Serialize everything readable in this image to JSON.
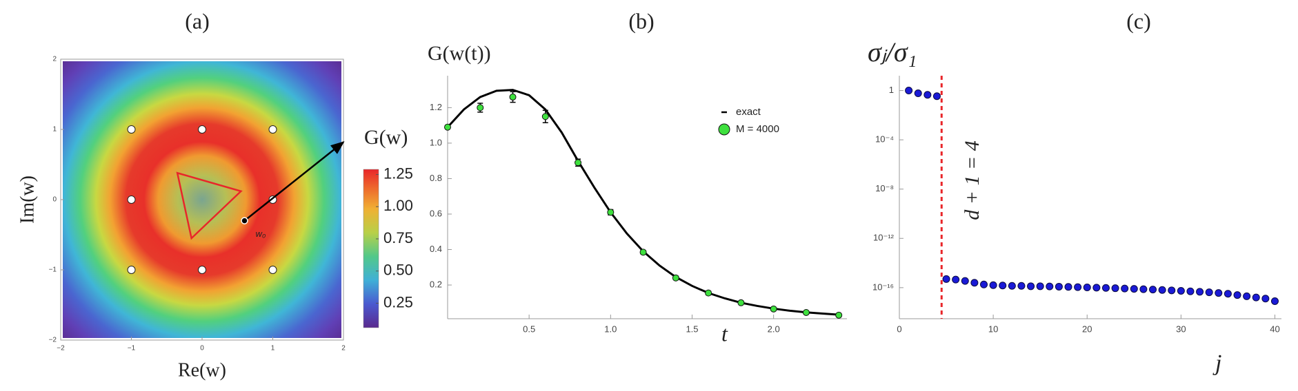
{
  "chart_data": [
    {
      "type": "density",
      "title": "(a)",
      "x_label": "Re(w)",
      "y_label": "Im(w)",
      "xlim": [
        -2,
        2
      ],
      "ylim": [
        -2,
        2
      ],
      "xticks": [
        {
          "value": -2,
          "label": "−2"
        },
        {
          "value": -1,
          "label": "−1"
        },
        0,
        1,
        2
      ],
      "yticks": [
        {
          "value": -2,
          "label": "−2"
        },
        {
          "value": -1,
          "label": "−1"
        },
        0,
        1,
        2
      ],
      "markers": {
        "x": [
          -1,
          0,
          1,
          -1,
          1,
          -1,
          0,
          1
        ],
        "y": [
          1,
          1,
          1,
          0,
          0,
          -1,
          -1,
          -1
        ]
      },
      "triangle": {
        "x": [
          -0.35,
          0.55,
          -0.15
        ],
        "y": [
          0.38,
          0.12,
          -0.55
        ],
        "color": "#e8262a"
      },
      "arrow": {
        "x": [
          0.6,
          2.0
        ],
        "y": [
          -0.3,
          0.82
        ],
        "label": "w₀"
      },
      "colorbar": {
        "label": "G(w)",
        "lim": [
          0.06,
          1.29
        ],
        "ticks": [
          0.25,
          {
            "value": 0.5,
            "label": "0.50"
          },
          0.75,
          {
            "value": 1,
            "label": "1.00"
          },
          1.25
        ]
      }
    },
    {
      "type": "line",
      "title": "(b)",
      "x_label": "t",
      "y_label": "G(w(t))",
      "xlim": [
        0,
        2.45
      ],
      "ylim": [
        0.01,
        1.38
      ],
      "xticks": [
        0.5,
        {
          "value": 1,
          "label": "1.0"
        },
        1.5,
        {
          "value": 2,
          "label": "2.0"
        }
      ],
      "yticks": [
        0.2,
        0.4,
        0.6,
        0.8,
        {
          "value": 1,
          "label": "1.0"
        },
        1.2
      ],
      "legend": "upper-right",
      "series": [
        {
          "name": "exact",
          "color": "#000000",
          "style": "line",
          "x": [
            0,
            0.1,
            0.2,
            0.3,
            0.4,
            0.5,
            0.6,
            0.7,
            0.8,
            0.9,
            1.0,
            1.1,
            1.2,
            1.3,
            1.4,
            1.5,
            1.6,
            1.7,
            1.8,
            1.9,
            2.0,
            2.1,
            2.2,
            2.3,
            2.4
          ],
          "values": [
            1.09,
            1.19,
            1.26,
            1.295,
            1.3,
            1.27,
            1.19,
            1.06,
            0.9,
            0.75,
            0.61,
            0.49,
            0.39,
            0.31,
            0.245,
            0.195,
            0.155,
            0.125,
            0.1,
            0.082,
            0.067,
            0.055,
            0.046,
            0.039,
            0.033
          ]
        },
        {
          "name": "M = 4000",
          "color": "#3ee03e",
          "style": "markers",
          "x": [
            0,
            0.2,
            0.4,
            0.6,
            0.8,
            1.0,
            1.2,
            1.4,
            1.6,
            1.8,
            2.0,
            2.2,
            2.4
          ],
          "values": [
            1.09,
            1.2,
            1.26,
            1.15,
            0.89,
            0.61,
            0.385,
            0.24,
            0.155,
            0.1,
            0.065,
            0.045,
            0.03
          ],
          "errors": [
            0.01,
            0.025,
            0.03,
            0.035,
            0.02,
            0.015,
            0.01,
            0.01,
            0.01,
            0.008,
            0.006,
            0.006,
            0.006
          ]
        }
      ]
    },
    {
      "type": "scatter",
      "title": "(c)",
      "x_label": "j",
      "y_label": "σⱼ/σ₁",
      "log_y": true,
      "xlim": [
        0,
        40.7
      ],
      "ylim": [
        3e-19,
        16
      ],
      "xticks": [
        0,
        10,
        20,
        30,
        40
      ],
      "yticks": [
        1,
        {
          "value": 0.0001,
          "label": "10⁻⁴"
        },
        {
          "value": 1e-08,
          "label": "10⁻⁸"
        },
        {
          "value": 1e-12,
          "label": "10⁻¹²"
        },
        {
          "value": 1e-16,
          "label": "10⁻¹⁶"
        }
      ],
      "threshold": {
        "x": 4.5,
        "label": "d + 1 = 4",
        "color": "#e8262a"
      },
      "color": "#1a1ad6",
      "x": [
        1,
        2,
        3,
        4,
        5,
        6,
        7,
        8,
        9,
        10,
        11,
        12,
        13,
        14,
        15,
        16,
        17,
        18,
        19,
        20,
        21,
        22,
        23,
        24,
        25,
        26,
        27,
        28,
        29,
        30,
        31,
        32,
        33,
        34,
        35,
        36,
        37,
        38,
        39,
        40
      ],
      "values": [
        1,
        0.6,
        0.45,
        0.35,
        5e-16,
        4.5e-16,
        3.5e-16,
        2.5e-16,
        1.8e-16,
        1.6e-16,
        1.5e-16,
        1.4e-16,
        1.4e-16,
        1.3e-16,
        1.3e-16,
        1.25e-16,
        1.2e-16,
        1.15e-16,
        1.1e-16,
        1.05e-16,
        1e-16,
        9.5e-17,
        9e-17,
        8.5e-17,
        8e-17,
        7.5e-17,
        7e-17,
        6.5e-17,
        6e-17,
        5.5e-17,
        5e-17,
        4.6e-17,
        4.2e-17,
        3.7e-17,
        3.2e-17,
        2.5e-17,
        2e-17,
        1.6e-17,
        1.3e-17,
        8e-18
      ]
    }
  ]
}
